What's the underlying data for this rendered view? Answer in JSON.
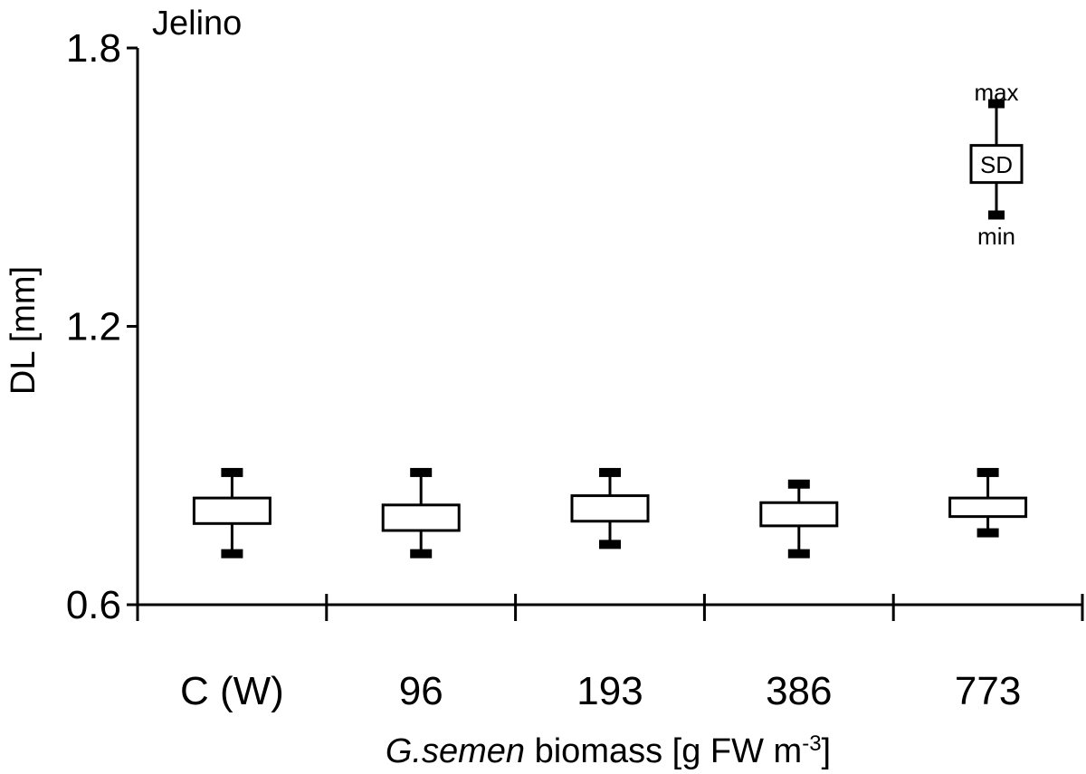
{
  "panel_title": "Jelino",
  "legend": {
    "max_label": "max",
    "min_label": "min",
    "box_label": "SD"
  },
  "chart_data": {
    "type": "boxplot",
    "title": "",
    "ylabel": "DL [mm]",
    "xlabel_parts": [
      {
        "text": "G.semen",
        "italic": true
      },
      {
        "text": " biomass [g FW m",
        "italic": false
      },
      {
        "text": "-3",
        "superscript": true
      },
      {
        "text": "]",
        "italic": false
      }
    ],
    "ylim": [
      0.6,
      1.8
    ],
    "yticks": [
      0.6,
      1.2,
      1.8
    ],
    "ytick_labels": [
      "0.6",
      "1.2",
      "1.8"
    ],
    "categories": [
      "C (W)",
      "96",
      "193",
      "386",
      "773"
    ],
    "boxes": [
      {
        "min": 0.71,
        "sd_low": 0.775,
        "sd_high": 0.83,
        "max": 0.885
      },
      {
        "min": 0.71,
        "sd_low": 0.76,
        "sd_high": 0.815,
        "max": 0.885
      },
      {
        "min": 0.73,
        "sd_low": 0.78,
        "sd_high": 0.835,
        "max": 0.885
      },
      {
        "min": 0.71,
        "sd_low": 0.77,
        "sd_high": 0.82,
        "max": 0.86
      },
      {
        "min": 0.755,
        "sd_low": 0.79,
        "sd_high": 0.83,
        "max": 0.885
      }
    ],
    "legend_box": {
      "min": 1.44,
      "sd_low": 1.51,
      "sd_high": 1.59,
      "max": 1.68
    },
    "grid": false,
    "legend_placement": "top-right"
  }
}
